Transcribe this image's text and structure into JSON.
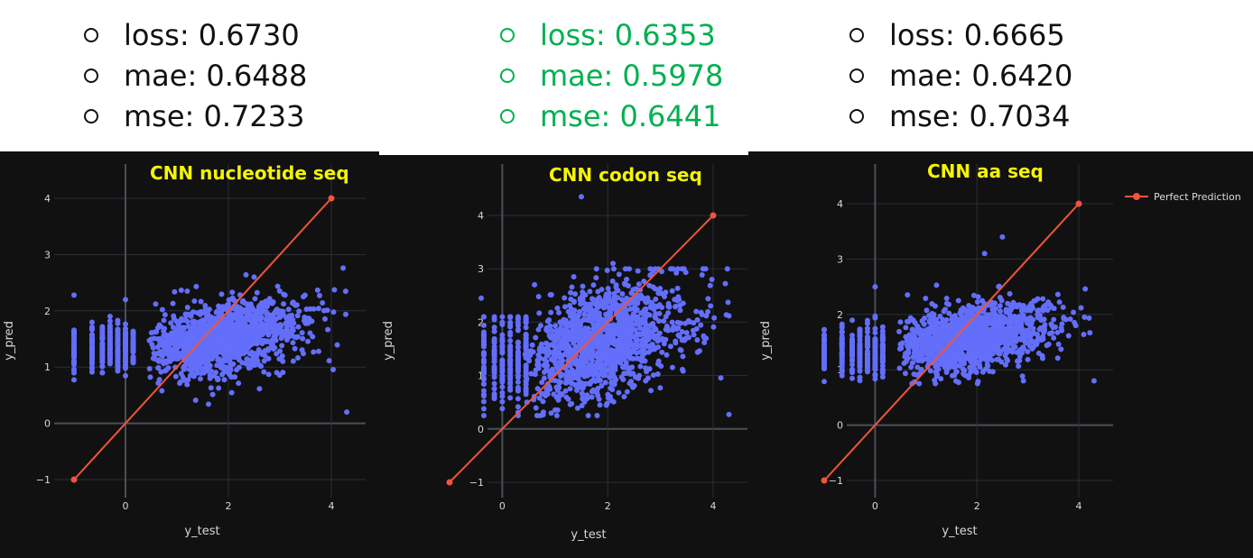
{
  "metrics": [
    {
      "loss": "loss: 0.6730",
      "mae": "mae: 0.6488",
      "mse": "mse: 0.7233",
      "color": "#111111"
    },
    {
      "loss": "loss: 0.6353",
      "mae": "mae: 0.5978",
      "mse": "mse: 0.6441",
      "color": "#00b050"
    },
    {
      "loss": "loss: 0.6665",
      "mae": "mae: 0.6420",
      "mse": "mse: 0.7034",
      "color": "#111111"
    }
  ],
  "legend": {
    "label": "Perfect Prediction",
    "color": "#ef553b"
  },
  "chart_data": [
    {
      "type": "scatter",
      "title": "CNN nucleotide seq",
      "xlabel": "y_test",
      "ylabel": "y_pred",
      "xticks": [
        "0",
        "2",
        "4"
      ],
      "yticks": [
        "−1",
        "0",
        "1",
        "2",
        "3",
        "4"
      ],
      "xlim": [
        -1.1,
        4.6
      ],
      "ylim": [
        -1.1,
        4.1
      ],
      "grid": true,
      "series": [
        {
          "name": "Perfect Prediction",
          "x": [
            -1,
            4
          ],
          "y": [
            -1,
            4
          ],
          "color": "#ef553b"
        }
      ],
      "scatter_color": "#636efa",
      "scatter_summary": {
        "x_range": [
          -1,
          4.3
        ],
        "y_range": [
          0.2,
          2.6
        ],
        "mean_pred": 1.45
      },
      "outliers": [
        [
          -1,
          2.28
        ],
        [
          4.3,
          0.2
        ],
        [
          2.5,
          2.6
        ],
        [
          0,
          2.2
        ]
      ]
    },
    {
      "type": "scatter",
      "title": "CNN codon seq",
      "xlabel": "y_test",
      "ylabel": "y_pred",
      "xticks": [
        "0",
        "2",
        "4"
      ],
      "yticks": [
        "−1",
        "0",
        "1",
        "2",
        "3",
        "4"
      ],
      "xlim": [
        -1.1,
        4.6
      ],
      "ylim": [
        -1.1,
        4.4
      ],
      "grid": true,
      "series": [
        {
          "name": "Perfect Prediction",
          "x": [
            -1,
            4
          ],
          "y": [
            -1,
            4
          ],
          "color": "#ef553b"
        }
      ],
      "scatter_color": "#636efa",
      "scatter_summary": {
        "x_range": [
          -0.4,
          4.3
        ],
        "y_range": [
          0.25,
          4.35
        ],
        "mean_pred": 1.5
      },
      "outliers": [
        [
          1.5,
          4.35
        ],
        [
          -0.4,
          2.45
        ],
        [
          4.3,
          0.27
        ],
        [
          2.1,
          3.1
        ]
      ]
    },
    {
      "type": "scatter",
      "title": "CNN aa seq",
      "xlabel": "y_test",
      "ylabel": "y_pred",
      "xticks": [
        "0",
        "2",
        "4"
      ],
      "yticks": [
        "−1",
        "0",
        "1",
        "2",
        "3",
        "4"
      ],
      "xlim": [
        -1.1,
        4.6
      ],
      "ylim": [
        -1.1,
        4.1
      ],
      "grid": true,
      "series": [
        {
          "name": "Perfect Prediction",
          "x": [
            -1,
            4
          ],
          "y": [
            -1,
            4
          ],
          "color": "#ef553b"
        }
      ],
      "scatter_color": "#636efa",
      "scatter_summary": {
        "x_range": [
          -1,
          4.3
        ],
        "y_range": [
          0.75,
          3.4
        ],
        "mean_pred": 1.5
      },
      "outliers": [
        [
          2.5,
          3.4
        ],
        [
          2.15,
          3.1
        ],
        [
          0,
          2.5
        ],
        [
          4.3,
          0.8
        ]
      ]
    }
  ]
}
